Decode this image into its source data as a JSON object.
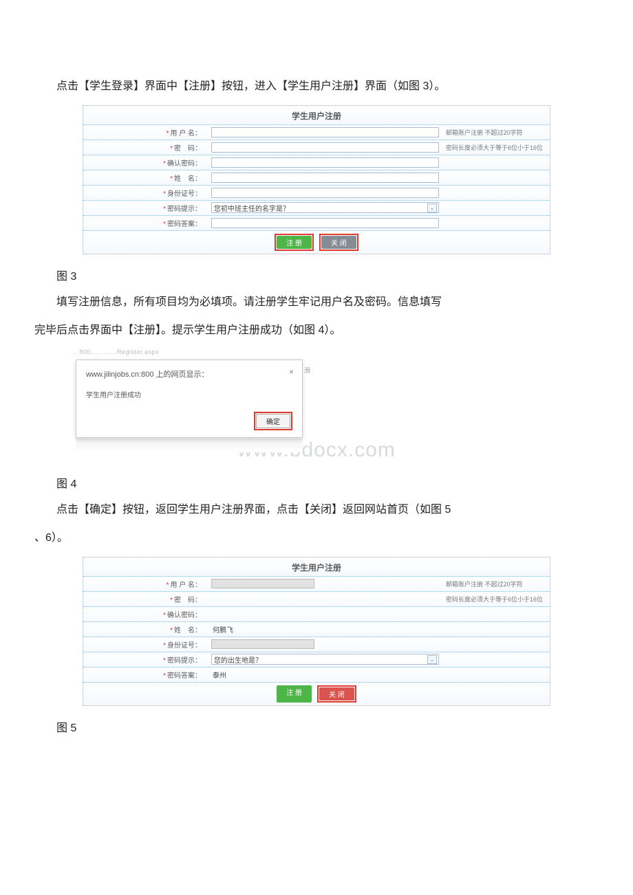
{
  "paragraphs": {
    "p1": "点击【学生登录】界面中【注册】按钮，进入【学生用户注册】界面（如图 3）。",
    "p2a": "填写注册信息，所有项目均为必填项。请注册学生牢记用户名及密码。信息填写",
    "p2b": "完毕后点击界面中【注册】。提示学生用户注册成功（如图 4）。",
    "p3": "点击【确定】按钮，返回学生用户注册界面，点击【关闭】返回网站首页（如图 5",
    "p3b": "、6）。"
  },
  "figLabels": {
    "f3": "图 3",
    "f4": "图 4",
    "f5": "图 5"
  },
  "form": {
    "title": "学生用户注册",
    "labels": {
      "username": "用 户 名：",
      "password": "密　码：",
      "confirm": "确认密码：",
      "realname": "姓　名：",
      "idcard": "身份证号：",
      "hint": "密码提示：",
      "answer": "密码答案："
    },
    "hints": {
      "username": "邮箱账户注册 不超过20字符",
      "password": "密码长度必须大于等于6位小于16位"
    },
    "selectOption1": "您初中班主任的名字是？",
    "selectOption2": "您的出生地是？",
    "answer2": "泰州",
    "realname2": "何鹏飞",
    "btnRegister": "注 册",
    "btnClose": "关 闭"
  },
  "dialog": {
    "urlTrace": "…800…………Register.aspx",
    "title": "www.jilinjobs.cn:800 上的网页显示：",
    "message": "学生用户注册成功",
    "ok": "确定",
    "scrollGlyph": "滑"
  },
  "watermark": "www.bdocx.com",
  "colors": {
    "red_border": "#e03a30",
    "green_btn": "#4eb648",
    "gray_btn": "#858c93",
    "redbg_btn": "#d9534f",
    "dot_border": "#8db0da"
  }
}
